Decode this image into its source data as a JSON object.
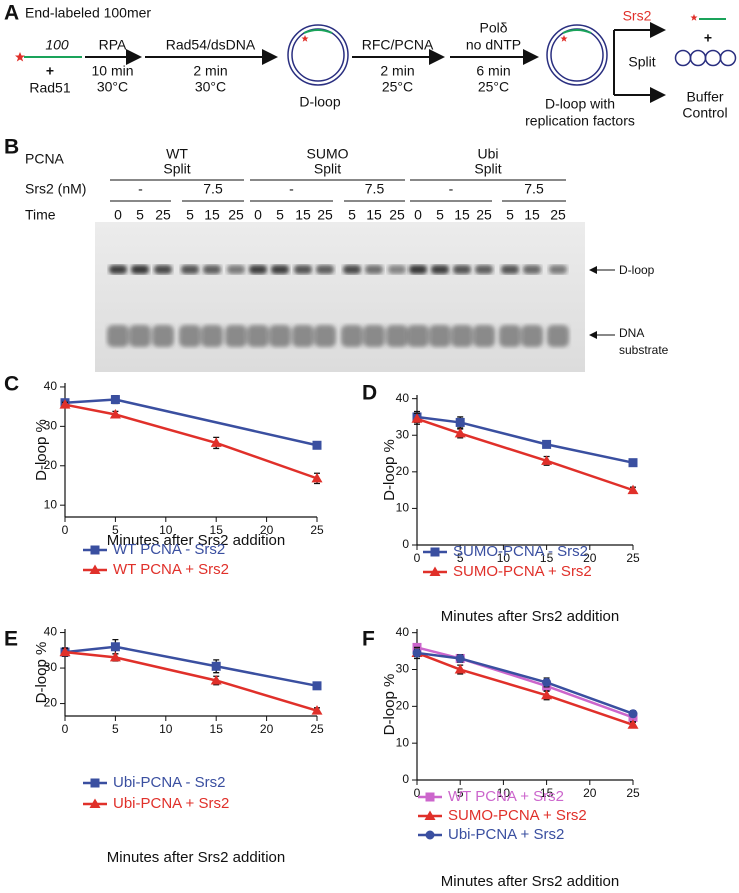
{
  "panel_a": {
    "letter": "A",
    "title": "End-labeled 100mer",
    "oligo": "100",
    "plus": "+",
    "rad51": "Rad51",
    "steps": [
      {
        "top": [
          "RPA"
        ],
        "bottom": [
          "10 min",
          "30°C"
        ]
      },
      {
        "top": [
          "Rad54/dsDNA"
        ],
        "bottom": [
          "2 min",
          "30°C"
        ]
      },
      {
        "top": [
          "RFC/PCNA"
        ],
        "bottom": [
          "2 min",
          "25°C"
        ]
      },
      {
        "top": [
          "Polδ",
          "no dNTP"
        ],
        "bottom": [
          "6 min",
          "25°C"
        ]
      }
    ],
    "dloop": "D-loop",
    "dloop_factors": [
      "D-loop with",
      "replication factors"
    ],
    "srs2": "Srs2",
    "split": "Split",
    "product_plus": "+",
    "buffer": [
      "Buffer",
      "Control"
    ]
  },
  "panel_b": {
    "letter": "B",
    "row_labels": {
      "pcna": "PCNA",
      "srs2": "Srs2 (nM)",
      "time": "Time"
    },
    "groups": [
      {
        "name": [
          "WT",
          "Split"
        ],
        "conditions": [
          {
            "srs2": "-",
            "times": [
              0,
              5,
              25
            ]
          },
          {
            "srs2": "7.5",
            "times": [
              5,
              15,
              25
            ]
          }
        ]
      },
      {
        "name": [
          "SUMO",
          "Split"
        ],
        "conditions": [
          {
            "srs2": "-",
            "times": [
              0,
              5,
              15,
              25
            ]
          },
          {
            "srs2": "7.5",
            "times": [
              5,
              15,
              25
            ]
          }
        ]
      },
      {
        "name": [
          "Ubi",
          "Split"
        ],
        "conditions": [
          {
            "srs2": "-",
            "times": [
              0,
              5,
              15,
              25
            ]
          },
          {
            "srs2": "7.5",
            "times": [
              5,
              15,
              25
            ]
          }
        ]
      }
    ],
    "bands": [
      [
        "D-loop"
      ],
      [
        "DNA",
        "substrate"
      ]
    ]
  },
  "chart_data": [
    {
      "type": "line",
      "letter": "C",
      "xlabel": "Minutes after Srs2 addition",
      "ylabel": "D-loop %",
      "xlim": [
        0,
        25
      ],
      "xticks": [
        0,
        5,
        10,
        15,
        20,
        25
      ],
      "ylim": [
        7,
        41
      ],
      "yticks": [
        10,
        20,
        30,
        40
      ],
      "series": [
        {
          "name": "WT PCNA - Srs2",
          "color": "#3a4fa0",
          "marker": "square",
          "x": [
            0,
            5,
            25
          ],
          "values": [
            36,
            36.8,
            25.2
          ],
          "errors": [
            0.6,
            1,
            0.6
          ]
        },
        {
          "name": "WT PCNA + Srs2",
          "color": "#e0302a",
          "marker": "triangle",
          "x": [
            0,
            5,
            15,
            25
          ],
          "values": [
            35.5,
            33,
            25.8,
            16.8
          ],
          "errors": [
            0.6,
            0.8,
            1.4,
            1.3
          ]
        }
      ]
    },
    {
      "type": "line",
      "letter": "D",
      "xlabel": "Minutes after Srs2 addition",
      "ylabel": "D-loop %",
      "xlim": [
        0,
        25
      ],
      "xticks": [
        0,
        5,
        10,
        15,
        20,
        25
      ],
      "ylim": [
        0,
        41
      ],
      "yticks": [
        0,
        10,
        20,
        30,
        40
      ],
      "series": [
        {
          "name": "SUMO-PCNA - Srs2",
          "color": "#3a4fa0",
          "marker": "square",
          "x": [
            0,
            5,
            15,
            25
          ],
          "values": [
            35,
            33.5,
            27.5,
            22.5
          ],
          "errors": [
            1.5,
            1.5,
            0.8,
            0.8
          ]
        },
        {
          "name": "SUMO-PCNA + Srs2",
          "color": "#e0302a",
          "marker": "triangle",
          "x": [
            0,
            5,
            15,
            25
          ],
          "values": [
            34.5,
            30.5,
            23,
            15
          ],
          "errors": [
            1.5,
            1.2,
            1.2,
            0.8
          ]
        }
      ]
    },
    {
      "type": "line",
      "letter": "E",
      "xlabel": "Minutes after Srs2 addition",
      "ylabel": "D-loop %",
      "xlim": [
        0,
        25
      ],
      "xticks": [
        0,
        5,
        10,
        15,
        20,
        25
      ],
      "ylim": [
        16.5,
        41
      ],
      "yticks": [
        20,
        30,
        40
      ],
      "series": [
        {
          "name": "Ubi-PCNA - Srs2",
          "color": "#3a4fa0",
          "marker": "square",
          "x": [
            0,
            5,
            15,
            25
          ],
          "values": [
            34.5,
            36,
            30.5,
            25
          ],
          "errors": [
            1.2,
            2,
            1.8,
            0.6
          ]
        },
        {
          "name": "Ubi-PCNA + Srs2",
          "color": "#e0302a",
          "marker": "triangle",
          "x": [
            0,
            5,
            15,
            25
          ],
          "values": [
            34.5,
            33,
            26.5,
            18
          ],
          "errors": [
            1,
            1,
            1.2,
            0.8
          ]
        }
      ]
    },
    {
      "type": "line",
      "letter": "F",
      "xlabel": "Minutes after Srs2 addition",
      "ylabel": "D-loop %",
      "xlim": [
        0,
        25
      ],
      "xticks": [
        0,
        5,
        10,
        15,
        20,
        25
      ],
      "ylim": [
        0,
        41
      ],
      "yticks": [
        0,
        10,
        20,
        30,
        40
      ],
      "series": [
        {
          "name": "WT PCNA + Srs2",
          "color": "#cc66cc",
          "marker": "square",
          "x": [
            0,
            5,
            15,
            25
          ],
          "values": [
            36,
            33,
            25.5,
            17
          ],
          "errors": [
            0.6,
            0.8,
            1.4,
            1.3
          ]
        },
        {
          "name": "SUMO-PCNA + Srs2",
          "color": "#e0302a",
          "marker": "triangle",
          "x": [
            0,
            5,
            15,
            25
          ],
          "values": [
            34.5,
            30,
            23,
            15
          ],
          "errors": [
            1.5,
            1.2,
            1.2,
            0.8
          ]
        },
        {
          "name": "Ubi-PCNA + Srs2",
          "color": "#3a4fa0",
          "marker": "circle",
          "x": [
            0,
            5,
            15,
            25
          ],
          "values": [
            34.5,
            33,
            26.5,
            18
          ],
          "errors": [
            1,
            1,
            1.2,
            0.8
          ]
        }
      ]
    }
  ]
}
